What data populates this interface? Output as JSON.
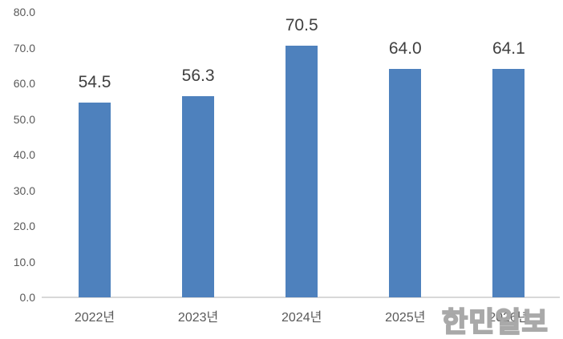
{
  "chart_data": {
    "type": "bar",
    "categories": [
      "2022년",
      "2023년",
      "2024년",
      "2025년",
      "2026년"
    ],
    "values": [
      54.5,
      56.3,
      70.5,
      64.0,
      64.1
    ],
    "data_labels": [
      "54.5",
      "56.3",
      "70.5",
      "64.0",
      "64.1"
    ],
    "y_ticks": [
      "0.0",
      "10.0",
      "20.0",
      "30.0",
      "40.0",
      "50.0",
      "60.0",
      "70.0",
      "80.0"
    ],
    "ylim": [
      0,
      80
    ],
    "title": "",
    "xlabel": "",
    "ylabel": "",
    "grid": false,
    "legend": false,
    "bar_color": "#4E81BD",
    "data_label_color": "#404040",
    "tick_label_color": "#595959",
    "axis_line_color": "#D8D8D8"
  },
  "watermark": {
    "text": "한민일보"
  }
}
